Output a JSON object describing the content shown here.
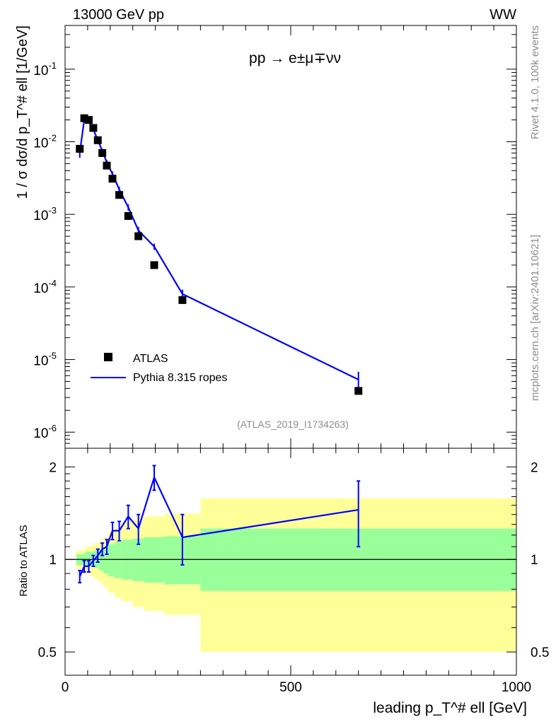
{
  "header": {
    "left": "13000 GeV pp",
    "right": "WW",
    "process": "pp → e±μ∓νν",
    "analysis_id": "(ATLAS_2019_I1734263)",
    "side_top": "Rivet 4.1.0,  100k events",
    "side_bottom": "mcplots.cern.ch [arXiv:2401.10621]"
  },
  "colors": {
    "data": "#000000",
    "mc": "#0000ff",
    "band_outer": "#ffff99",
    "band_inner": "#99ff99",
    "side_text": "#8c8c8c"
  },
  "chart_data": [
    {
      "type": "scatter",
      "name": "main",
      "yscale": "log",
      "ylabel": "1 / σ  dσ/d p_T^# ell [1/GeV]",
      "xlabel": "",
      "xlim": [
        0,
        1000
      ],
      "ylim": [
        6e-07,
        0.4
      ],
      "y_ticks": [
        "10^-6",
        "10^-5",
        "10^-4",
        "10^-3",
        "10^-2",
        "10^-1"
      ],
      "legend": {
        "position": "bottom-left",
        "entries": [
          "ATLAS",
          "Pythia 8.315 ropes"
        ]
      },
      "series": [
        {
          "name": "ATLAS",
          "style": "markers",
          "x": [
            32.5,
            42.5,
            52.5,
            62.5,
            72.5,
            82.5,
            92.5,
            105,
            120,
            140,
            162.5,
            197.5,
            260,
            650
          ],
          "values": [
            0.008,
            0.0211,
            0.02,
            0.0155,
            0.0105,
            0.007,
            0.0047,
            0.0031,
            0.00185,
            0.00095,
            0.0005,
            0.0002,
            6.6e-05,
            3.7e-06
          ]
        },
        {
          "name": "Pythia 8.315 ropes",
          "style": "line",
          "x": [
            32.5,
            42.5,
            52.5,
            62.5,
            72.5,
            82.5,
            92.5,
            105,
            120,
            140,
            162.5,
            197.5,
            260,
            650
          ],
          "values": [
            0.007,
            0.02,
            0.019,
            0.0148,
            0.0105,
            0.0075,
            0.0052,
            0.0036,
            0.0022,
            0.00125,
            0.0006,
            0.00036,
            8e-05,
            5.3e-06
          ],
          "err_low": [
            0.001,
            0.0012,
            0.001,
            0.0009,
            0.0007,
            0.0005,
            0.0004,
            0.0003,
            0.0002,
            0.00012,
            7e-05,
            3.5e-05,
            1.2e-05,
            1.5e-06
          ],
          "err_high": [
            0.001,
            0.0012,
            0.001,
            0.0009,
            0.0007,
            0.0005,
            0.0004,
            0.0003,
            0.0002,
            0.00012,
            7e-05,
            3.5e-05,
            1.2e-05,
            1.5e-06
          ]
        }
      ]
    },
    {
      "type": "line",
      "name": "ratio",
      "ylabel": "Ratio to ATLAS",
      "xlabel": "leading p_T^# ell [GeV]",
      "xlim": [
        0,
        1000
      ],
      "ylim": [
        0.42,
        2.3
      ],
      "x_ticks": [
        "0",
        "500",
        "1000"
      ],
      "y_ticks": [
        "0.5",
        "1",
        "2"
      ],
      "reference_line": 1.0,
      "bands": {
        "bins": [
          [
            25,
            40
          ],
          [
            40,
            45
          ],
          [
            45,
            55
          ],
          [
            55,
            65
          ],
          [
            65,
            75
          ],
          [
            75,
            85
          ],
          [
            85,
            95
          ],
          [
            95,
            110
          ],
          [
            110,
            125
          ],
          [
            125,
            150
          ],
          [
            150,
            175
          ],
          [
            175,
            220
          ],
          [
            220,
            300
          ],
          [
            300,
            1000
          ]
        ],
        "inner_low": [
          0.96,
          0.96,
          0.95,
          0.95,
          0.94,
          0.92,
          0.9,
          0.88,
          0.87,
          0.86,
          0.85,
          0.84,
          0.83,
          0.79
        ],
        "inner_high": [
          1.04,
          1.05,
          1.06,
          1.06,
          1.07,
          1.08,
          1.09,
          1.12,
          1.14,
          1.16,
          1.17,
          1.18,
          1.19,
          1.26
        ],
        "outer_low": [
          0.93,
          0.91,
          0.9,
          0.88,
          0.86,
          0.84,
          0.81,
          0.78,
          0.75,
          0.73,
          0.7,
          0.68,
          0.66,
          0.5
        ],
        "outer_high": [
          1.07,
          1.08,
          1.1,
          1.11,
          1.13,
          1.15,
          1.18,
          1.23,
          1.27,
          1.32,
          1.35,
          1.38,
          1.41,
          1.58
        ]
      },
      "series": [
        {
          "name": "Pythia 8.315 ropes / ATLAS",
          "x": [
            32.5,
            42.5,
            52.5,
            62.5,
            72.5,
            82.5,
            92.5,
            105,
            120,
            140,
            162.5,
            197.5,
            260,
            650
          ],
          "values": [
            0.88,
            0.95,
            0.95,
            0.99,
            1.03,
            1.08,
            1.1,
            1.24,
            1.24,
            1.38,
            1.26,
            1.85,
            1.18,
            1.45
          ],
          "err_low": [
            0.04,
            0.04,
            0.04,
            0.04,
            0.05,
            0.05,
            0.06,
            0.08,
            0.09,
            0.12,
            0.14,
            0.17,
            0.22,
            0.35
          ],
          "err_high": [
            0.04,
            0.04,
            0.04,
            0.04,
            0.05,
            0.05,
            0.06,
            0.08,
            0.09,
            0.12,
            0.14,
            0.17,
            0.22,
            0.35
          ]
        }
      ]
    }
  ]
}
